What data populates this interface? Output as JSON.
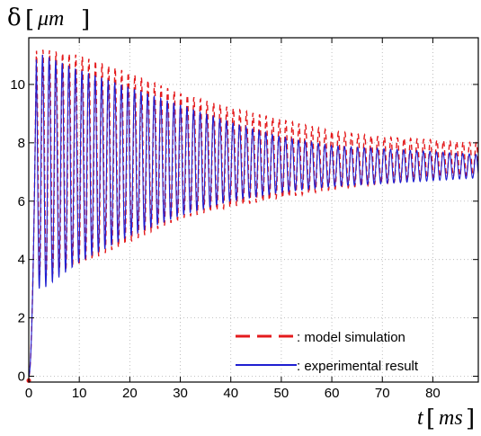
{
  "chart_data": {
    "type": "line",
    "xlabel": "t [ms]",
    "ylabel": "δ [μm]",
    "xlabel_parts": {
      "var": "t",
      "unit": "ms"
    },
    "ylabel_parts": {
      "var": "δ",
      "unit": "μm"
    },
    "xlim": [
      0,
      89
    ],
    "ylim": [
      -0.2,
      11.6
    ],
    "x_ticks": [
      0,
      10,
      20,
      30,
      40,
      50,
      60,
      70,
      80
    ],
    "y_ticks": [
      0,
      2,
      4,
      6,
      8,
      10
    ],
    "grid": true,
    "legend_placement": "bottom-right",
    "equilibrium": 7.2,
    "oscillation_period_ms": 1.3,
    "series": [
      {
        "name": ": model simulation",
        "color": "#e41a1c",
        "style": "dashed",
        "envelope": {
          "x": [
            0,
            1.5,
            3,
            10,
            20,
            30,
            40,
            50,
            60,
            70,
            80,
            89
          ],
          "upper": [
            0,
            11.2,
            11.2,
            11.0,
            10.4,
            9.7,
            9.2,
            8.8,
            8.4,
            8.2,
            8.1,
            8.0
          ],
          "lower": [
            0,
            3.5,
            3.4,
            3.8,
            4.6,
            5.4,
            5.8,
            6.1,
            6.4,
            6.6,
            6.8,
            6.9
          ]
        }
      },
      {
        "name": ": experimental result",
        "color": "#1f1fd1",
        "style": "solid",
        "envelope": {
          "x": [
            0,
            1.5,
            3,
            10,
            20,
            30,
            40,
            50,
            60,
            70,
            80,
            89
          ],
          "upper": [
            0,
            11.1,
            11.0,
            10.5,
            9.9,
            9.3,
            8.7,
            8.2,
            7.9,
            7.8,
            7.7,
            7.6
          ],
          "lower": [
            0,
            3.0,
            3.0,
            3.9,
            4.8,
            5.5,
            6.0,
            6.3,
            6.5,
            6.6,
            6.7,
            6.8
          ]
        }
      }
    ]
  }
}
